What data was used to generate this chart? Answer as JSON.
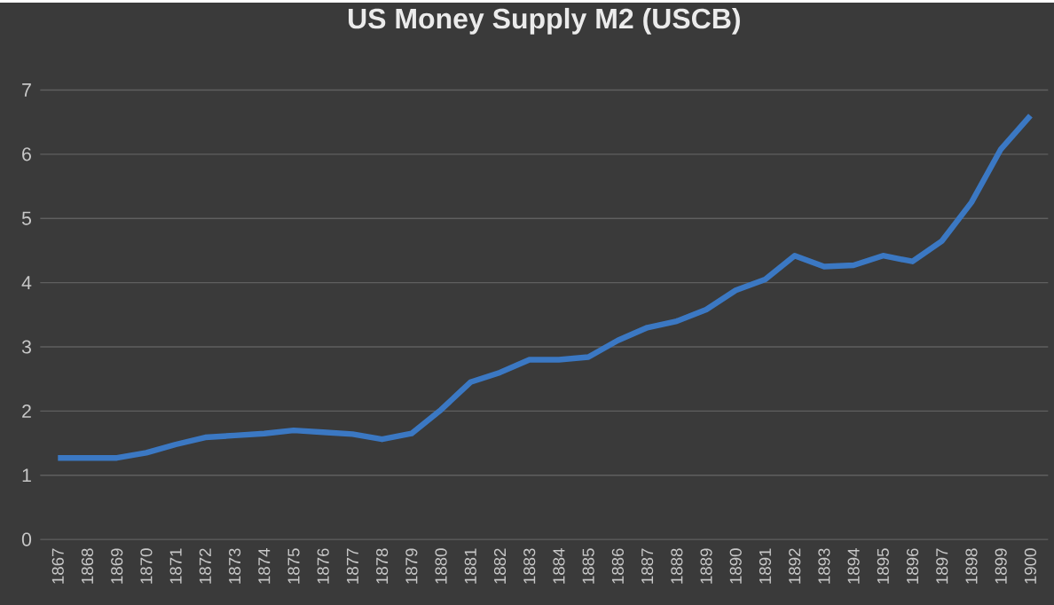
{
  "chart_data": {
    "type": "line",
    "title": "US Money Supply M2 (USCB)",
    "categories": [
      "1867",
      "1868",
      "1869",
      "1870",
      "1871",
      "1872",
      "1873",
      "1874",
      "1875",
      "1876",
      "1877",
      "1878",
      "1879",
      "1880",
      "1881",
      "1882",
      "1883",
      "1884",
      "1885",
      "1886",
      "1887",
      "1888",
      "1889",
      "1890",
      "1891",
      "1892",
      "1893",
      "1894",
      "1895",
      "1896",
      "1897",
      "1898",
      "1899",
      "1900"
    ],
    "series": [
      {
        "color": "#3b78c3",
        "values": [
          1.27,
          1.27,
          1.27,
          1.35,
          1.48,
          1.59,
          1.62,
          1.65,
          1.7,
          1.67,
          1.64,
          1.56,
          1.65,
          2.02,
          2.45,
          2.6,
          2.8,
          2.8,
          2.84,
          3.1,
          3.3,
          3.4,
          3.58,
          3.88,
          4.05,
          4.42,
          4.25,
          4.27,
          4.42,
          4.33,
          4.65,
          5.25,
          6.08,
          6.6
        ]
      }
    ],
    "ylim": [
      0,
      7
    ],
    "yticks": [
      0,
      1,
      2,
      3,
      4,
      5,
      6,
      7
    ],
    "grid": "y",
    "marker": "none",
    "line_style": "solid"
  }
}
